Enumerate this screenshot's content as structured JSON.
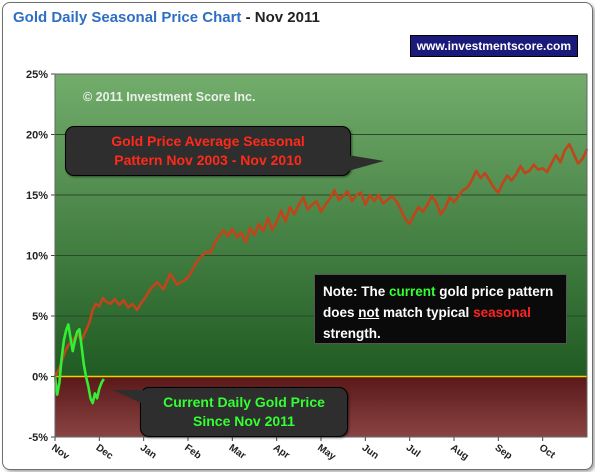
{
  "title": {
    "main": "Gold Daily Seasonal Price Chart",
    "separator": " - ",
    "date": "Nov 2011"
  },
  "website": "www.investmentscore.com",
  "copyright": "© 2011 Investment Score Inc.",
  "callouts": {
    "seasonal": {
      "line1": "Gold Price Average Seasonal",
      "line2": "Pattern Nov 2003 - Nov 2010"
    },
    "current": {
      "line1": "Current Daily Gold Price",
      "line2": "Since Nov 2011"
    }
  },
  "note": {
    "p1": "Note:  The ",
    "w_current": "current",
    "p2": " gold price pattern does ",
    "w_not": "not",
    "p3": " match typical ",
    "w_seasonal": "seasonal",
    "p4": " strength."
  },
  "colors": {
    "positive_zone": "#3c7a3c",
    "negative_zone": "#6b2a2a",
    "seasonal_line": "#c0451a",
    "current_line": "#33ee33",
    "zero_line": "#f2d000"
  },
  "chart_data": {
    "type": "line",
    "title": "Gold Daily Seasonal Price Chart - Nov 2011",
    "y_unit": "%",
    "ylim": [
      -5,
      25
    ],
    "y_ticks": [
      -5,
      0,
      5,
      10,
      15,
      20,
      25
    ],
    "y_tick_labels": [
      "-5%",
      "0%",
      "5%",
      "10%",
      "15%",
      "20%",
      "25%"
    ],
    "x_tick_labels": [
      "Nov",
      "Dec",
      "Jan",
      "Feb",
      "Mar",
      "Apr",
      "May",
      "Jun",
      "Jul",
      "Aug",
      "Sep",
      "Oct"
    ],
    "x_unit": "month index",
    "xlim": [
      0,
      12
    ],
    "grid": true,
    "series": [
      {
        "name": "Gold Price Average Seasonal Pattern Nov 2003 - Nov 2010",
        "x": [
          0,
          0.08,
          0.15,
          0.22,
          0.3,
          0.4,
          0.5,
          0.6,
          0.7,
          0.78,
          0.85,
          0.92,
          1.0,
          1.08,
          1.15,
          1.25,
          1.35,
          1.45,
          1.55,
          1.65,
          1.75,
          1.85,
          1.95,
          2.05,
          2.15,
          2.3,
          2.45,
          2.6,
          2.75,
          2.9,
          3.0,
          3.1,
          3.2,
          3.3,
          3.4,
          3.5,
          3.6,
          3.7,
          3.8,
          3.9,
          4.0,
          4.1,
          4.2,
          4.3,
          4.4,
          4.5,
          4.6,
          4.7,
          4.8,
          4.9,
          5.0,
          5.1,
          5.2,
          5.3,
          5.4,
          5.5,
          5.6,
          5.7,
          5.8,
          5.9,
          6.0,
          6.1,
          6.2,
          6.3,
          6.4,
          6.5,
          6.6,
          6.7,
          6.8,
          6.9,
          7.0,
          7.1,
          7.2,
          7.3,
          7.4,
          7.5,
          7.6,
          7.7,
          7.8,
          7.9,
          8.0,
          8.1,
          8.2,
          8.3,
          8.4,
          8.5,
          8.6,
          8.7,
          8.8,
          8.9,
          9.0,
          9.1,
          9.2,
          9.3,
          9.4,
          9.5,
          9.6,
          9.7,
          9.8,
          9.9,
          10.0,
          10.1,
          10.2,
          10.3,
          10.4,
          10.5,
          10.6,
          10.7,
          10.8,
          10.9,
          11.0,
          11.1,
          11.2,
          11.3,
          11.4,
          11.5,
          11.6,
          11.7,
          11.8,
          11.9,
          12.0
        ],
        "y": [
          0.0,
          0.5,
          1.2,
          2.0,
          2.6,
          3.0,
          3.5,
          3.0,
          3.8,
          4.5,
          5.5,
          6.0,
          5.8,
          6.5,
          6.2,
          6.0,
          6.4,
          5.9,
          6.3,
          5.7,
          6.0,
          5.5,
          6.1,
          6.6,
          7.2,
          7.8,
          7.2,
          8.5,
          7.6,
          7.9,
          8.2,
          8.8,
          9.5,
          9.9,
          10.3,
          10.2,
          11.0,
          11.6,
          12.1,
          11.6,
          12.2,
          11.5,
          11.9,
          11.1,
          12.3,
          11.7,
          12.6,
          12.0,
          13.1,
          12.1,
          12.8,
          13.7,
          12.8,
          14.0,
          13.4,
          14.2,
          14.8,
          13.8,
          14.2,
          14.5,
          13.6,
          14.2,
          14.7,
          15.4,
          14.6,
          14.9,
          15.3,
          14.5,
          15.0,
          15.2,
          14.2,
          15.0,
          14.5,
          15.0,
          14.3,
          14.6,
          14.9,
          14.5,
          13.8,
          13.0,
          12.6,
          13.4,
          14.0,
          13.6,
          14.2,
          14.9,
          14.4,
          13.4,
          13.9,
          14.8,
          14.4,
          14.9,
          15.4,
          15.6,
          16.2,
          17.0,
          16.4,
          16.8,
          16.2,
          15.6,
          15.2,
          16.0,
          16.6,
          16.2,
          16.7,
          17.4,
          16.8,
          17.0,
          17.5,
          17.1,
          17.2,
          16.9,
          17.6,
          18.3,
          17.7,
          18.7,
          19.2,
          18.4,
          17.6,
          18.0,
          18.8
        ]
      },
      {
        "name": "Current Daily Gold Price Since Nov 2011",
        "x": [
          0,
          0.05,
          0.1,
          0.15,
          0.2,
          0.25,
          0.3,
          0.35,
          0.4,
          0.45,
          0.5,
          0.55,
          0.6,
          0.65,
          0.7,
          0.75,
          0.8,
          0.85,
          0.9,
          0.95,
          1.0,
          1.05,
          1.1
        ],
        "y": [
          0.0,
          -1.5,
          -0.5,
          1.5,
          3.0,
          3.8,
          4.3,
          3.2,
          2.1,
          3.0,
          3.7,
          3.9,
          2.5,
          1.0,
          0.0,
          -0.8,
          -1.8,
          -2.2,
          -1.4,
          -1.8,
          -1.0,
          -0.5,
          -0.2
        ]
      }
    ]
  }
}
